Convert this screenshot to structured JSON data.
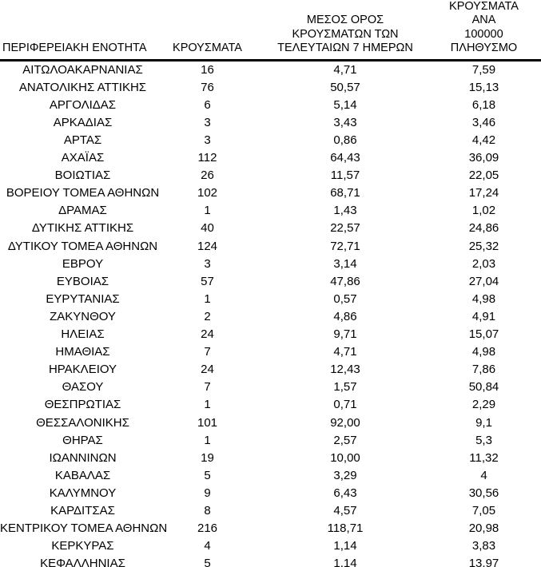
{
  "colors": {
    "background": "#ffffff",
    "text": "#000000",
    "header_rule": "#000000",
    "bottom_rule": "#444444"
  },
  "table": {
    "columns": [
      {
        "key": "region",
        "header": "ΠΕΡΙΦΕΡΕΙΑΚΗ ΕΝΟΤΗΤΑ"
      },
      {
        "key": "cases",
        "header": "ΚΡΟΥΣΜΑΤΑ"
      },
      {
        "key": "avg-7-days",
        "header": "ΜΕΣΟΣ ΟΡΟΣ\nΚΡΟΥΣΜΑΤΩΝ ΤΩΝ\nΤΕΛΕΥΤΑΙΩΝ 7 ΗΜΕΡΩΝ"
      },
      {
        "key": "per-100000",
        "header": "ΚΡΟΥΣΜΑΤΑ ΑΝΑ\n100000 ΠΛΗΘΥΣΜΟ"
      }
    ],
    "rows": [
      [
        "ΑΙΤΩΛΟΑΚΑΡΝΑΝΙΑΣ",
        "16",
        "4,71",
        "7,59"
      ],
      [
        "ΑΝΑΤΟΛΙΚΗΣ ΑΤΤΙΚΗΣ",
        "76",
        "50,57",
        "15,13"
      ],
      [
        "ΑΡΓΟΛΙΔΑΣ",
        "6",
        "5,14",
        "6,18"
      ],
      [
        "ΑΡΚΑΔΙΑΣ",
        "3",
        "3,43",
        "3,46"
      ],
      [
        "ΑΡΤΑΣ",
        "3",
        "0,86",
        "4,42"
      ],
      [
        "ΑΧΑΪΑΣ",
        "112",
        "64,43",
        "36,09"
      ],
      [
        "ΒΟΙΩΤΙΑΣ",
        "26",
        "11,57",
        "22,05"
      ],
      [
        "ΒΟΡΕΙΟΥ ΤΟΜΕΑ ΑΘΗΝΩΝ",
        "102",
        "68,71",
        "17,24"
      ],
      [
        "ΔΡΑΜΑΣ",
        "1",
        "1,43",
        "1,02"
      ],
      [
        "ΔΥΤΙΚΗΣ ΑΤΤΙΚΗΣ",
        "40",
        "22,57",
        "24,86"
      ],
      [
        "ΔΥΤΙΚΟΥ ΤΟΜΕΑ ΑΘΗΝΩΝ",
        "124",
        "72,71",
        "25,32"
      ],
      [
        "ΕΒΡΟΥ",
        "3",
        "3,14",
        "2,03"
      ],
      [
        "ΕΥΒΟΙΑΣ",
        "57",
        "47,86",
        "27,04"
      ],
      [
        "ΕΥΡΥΤΑΝΙΑΣ",
        "1",
        "0,57",
        "4,98"
      ],
      [
        "ΖΑΚΥΝΘΟΥ",
        "2",
        "4,86",
        "4,91"
      ],
      [
        "ΗΛΕΙΑΣ",
        "24",
        "9,71",
        "15,07"
      ],
      [
        "ΗΜΑΘΙΑΣ",
        "7",
        "4,71",
        "4,98"
      ],
      [
        "ΗΡΑΚΛΕΙΟΥ",
        "24",
        "12,43",
        "7,86"
      ],
      [
        "ΘΑΣΟΥ",
        "7",
        "1,57",
        "50,84"
      ],
      [
        "ΘΕΣΠΡΩΤΙΑΣ",
        "1",
        "0,71",
        "2,29"
      ],
      [
        "ΘΕΣΣΑΛΟΝΙΚΗΣ",
        "101",
        "92,00",
        "9,1"
      ],
      [
        "ΘΗΡΑΣ",
        "1",
        "2,57",
        "5,3"
      ],
      [
        "ΙΩΑΝΝΙΝΩΝ",
        "19",
        "10,00",
        "11,32"
      ],
      [
        "ΚΑΒΑΛΑΣ",
        "5",
        "3,29",
        "4"
      ],
      [
        "ΚΑΛΥΜΝΟΥ",
        "9",
        "6,43",
        "30,56"
      ],
      [
        "ΚΑΡΔΙΤΣΑΣ",
        "8",
        "4,57",
        "7,05"
      ],
      [
        "ΚΕΝΤΡΙΚΟΥ ΤΟΜΕΑ ΑΘΗΝΩΝ",
        "216",
        "118,71",
        "20,98"
      ],
      [
        "ΚΕΡΚΥΡΑΣ",
        "4",
        "1,14",
        "3,83"
      ],
      [
        "ΚΕΦΑΛΛΗΝΙΑΣ",
        "5",
        "1,14",
        "13,97"
      ]
    ]
  }
}
